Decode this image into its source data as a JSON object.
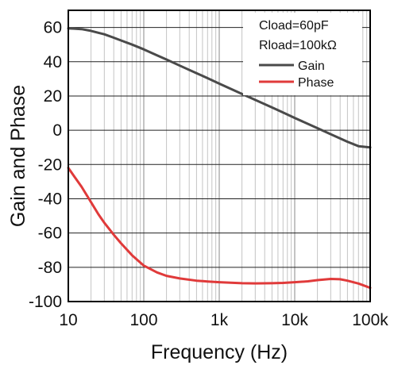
{
  "chart_data": {
    "type": "line",
    "xlabel": "Frequency (Hz)",
    "ylabel": "Gain and Phase",
    "x_scale": "log",
    "xlim": [
      10,
      100000
    ],
    "ylim": [
      -100,
      70
    ],
    "grid": true,
    "legend_position": "top-right",
    "annotations": [
      "Cload=60pF",
      "Rload=100kΩ"
    ],
    "x_ticks": [
      {
        "value": 10,
        "label": "10"
      },
      {
        "value": 100,
        "label": "100"
      },
      {
        "value": 1000,
        "label": "1k"
      },
      {
        "value": 10000,
        "label": "10k"
      },
      {
        "value": 100000,
        "label": "100k"
      }
    ],
    "y_ticks": [
      60,
      40,
      20,
      0,
      -20,
      -40,
      -60,
      -80,
      -100
    ],
    "series": [
      {
        "name": "Gain",
        "color": "#4a4a4a",
        "x": [
          10,
          12,
          15,
          20,
          25,
          30,
          40,
          50,
          70,
          100,
          150,
          200,
          300,
          500,
          700,
          1000,
          2000,
          3000,
          5000,
          7000,
          10000,
          20000,
          30000,
          50000,
          70000,
          100000
        ],
        "y": [
          59.5,
          59.3,
          59,
          58,
          56.9,
          56,
          54,
          52.4,
          50,
          47.2,
          43.7,
          41.3,
          37.7,
          33.3,
          30.4,
          27.2,
          21.2,
          17.7,
          13.3,
          10.4,
          7.2,
          1.2,
          -2.3,
          -6.7,
          -9.3,
          -10
        ]
      },
      {
        "name": "Phase",
        "color": "#e03a3a",
        "x": [
          10,
          12,
          15,
          20,
          25,
          30,
          40,
          50,
          70,
          100,
          150,
          200,
          300,
          500,
          700,
          1000,
          2000,
          3000,
          5000,
          7000,
          10000,
          15000,
          20000,
          30000,
          40000,
          50000,
          70000,
          100000
        ],
        "y": [
          -22,
          -27,
          -33,
          -42,
          -49,
          -54,
          -61,
          -66,
          -73,
          -79,
          -83,
          -85,
          -86.5,
          -87.8,
          -88.3,
          -88.7,
          -89.3,
          -89.4,
          -89.3,
          -89.1,
          -88.7,
          -88.2,
          -87.5,
          -86.8,
          -87,
          -87.8,
          -89.5,
          -92
        ]
      }
    ]
  }
}
